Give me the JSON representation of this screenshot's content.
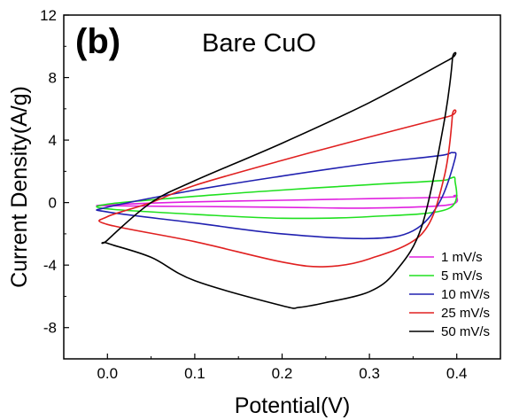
{
  "chart_data": {
    "type": "line",
    "panel_label": "(b)",
    "title": "Bare CuO",
    "xlabel": "Potential(V)",
    "ylabel": "Current Density(A/g)",
    "xlim": [
      -0.05,
      0.45
    ],
    "ylim": [
      -10,
      12
    ],
    "x_ticks": [
      {
        "value": 0.0,
        "label": "0.0"
      },
      {
        "value": 0.1,
        "label": "0.1"
      },
      {
        "value": 0.2,
        "label": "0.2"
      },
      {
        "value": 0.3,
        "label": "0.3"
      },
      {
        "value": 0.4,
        "label": "0.4"
      }
    ],
    "y_ticks": [
      {
        "value": -8,
        "label": "-8"
      },
      {
        "value": -4,
        "label": "-4"
      },
      {
        "value": 0,
        "label": "0"
      },
      {
        "value": 4,
        "label": "4"
      },
      {
        "value": 8,
        "label": "8"
      },
      {
        "value": 12,
        "label": "12"
      }
    ],
    "grid": false,
    "legend_position": "bottom-right",
    "series": [
      {
        "name": "1 mV/s",
        "color": "#e020e0",
        "points": [
          [
            0.0,
            -0.15
          ],
          [
            0.1,
            0.05
          ],
          [
            0.2,
            0.15
          ],
          [
            0.3,
            0.25
          ],
          [
            0.39,
            0.35
          ],
          [
            0.397,
            0.45
          ],
          [
            0.4,
            0.4
          ],
          [
            0.39,
            -0.15
          ],
          [
            0.3,
            -0.35
          ],
          [
            0.2,
            -0.3
          ],
          [
            0.1,
            -0.25
          ],
          [
            0.0,
            -0.2
          ]
        ]
      },
      {
        "name": "5 mV/s",
        "color": "#20e020",
        "points": [
          [
            0.0,
            -0.1
          ],
          [
            0.1,
            0.4
          ],
          [
            0.2,
            0.8
          ],
          [
            0.3,
            1.15
          ],
          [
            0.38,
            1.4
          ],
          [
            0.392,
            1.55
          ],
          [
            0.398,
            1.45
          ],
          [
            0.39,
            -0.4
          ],
          [
            0.3,
            -0.9
          ],
          [
            0.2,
            -1.0
          ],
          [
            0.1,
            -0.75
          ],
          [
            0.0,
            -0.4
          ]
        ]
      },
      {
        "name": "10 mV/s",
        "color": "#2020b0",
        "points": [
          [
            0.0,
            -0.3
          ],
          [
            0.1,
            0.8
          ],
          [
            0.2,
            1.7
          ],
          [
            0.3,
            2.5
          ],
          [
            0.38,
            3.0
          ],
          [
            0.395,
            3.2
          ],
          [
            0.398,
            2.8
          ],
          [
            0.38,
            0.0
          ],
          [
            0.35,
            -1.8
          ],
          [
            0.3,
            -2.3
          ],
          [
            0.2,
            -2.0
          ],
          [
            0.1,
            -1.3
          ],
          [
            0.0,
            -0.6
          ]
        ]
      },
      {
        "name": "25 mV/s",
        "color": "#e02020",
        "points": [
          [
            0.0,
            -0.9
          ],
          [
            0.05,
            0.0
          ],
          [
            0.1,
            1.1
          ],
          [
            0.2,
            2.7
          ],
          [
            0.3,
            4.2
          ],
          [
            0.39,
            5.5
          ],
          [
            0.395,
            5.6
          ],
          [
            0.385,
            1.5
          ],
          [
            0.36,
            -2.0
          ],
          [
            0.3,
            -3.6
          ],
          [
            0.25,
            -4.1
          ],
          [
            0.2,
            -3.8
          ],
          [
            0.1,
            -2.5
          ],
          [
            0.0,
            -1.4
          ]
        ]
      },
      {
        "name": "50 mV/s",
        "color": "#000000",
        "points": [
          [
            0.0,
            -2.4
          ],
          [
            0.05,
            0.0
          ],
          [
            0.1,
            1.4
          ],
          [
            0.2,
            3.8
          ],
          [
            0.3,
            6.4
          ],
          [
            0.39,
            9.1
          ],
          [
            0.395,
            9.2
          ],
          [
            0.385,
            5.0
          ],
          [
            0.36,
            -1.5
          ],
          [
            0.33,
            -4.4
          ],
          [
            0.3,
            -5.7
          ],
          [
            0.25,
            -6.4
          ],
          [
            0.22,
            -6.7
          ],
          [
            0.2,
            -6.6
          ],
          [
            0.1,
            -5.0
          ],
          [
            0.05,
            -3.5
          ],
          [
            0.0,
            -2.6
          ]
        ]
      }
    ]
  }
}
